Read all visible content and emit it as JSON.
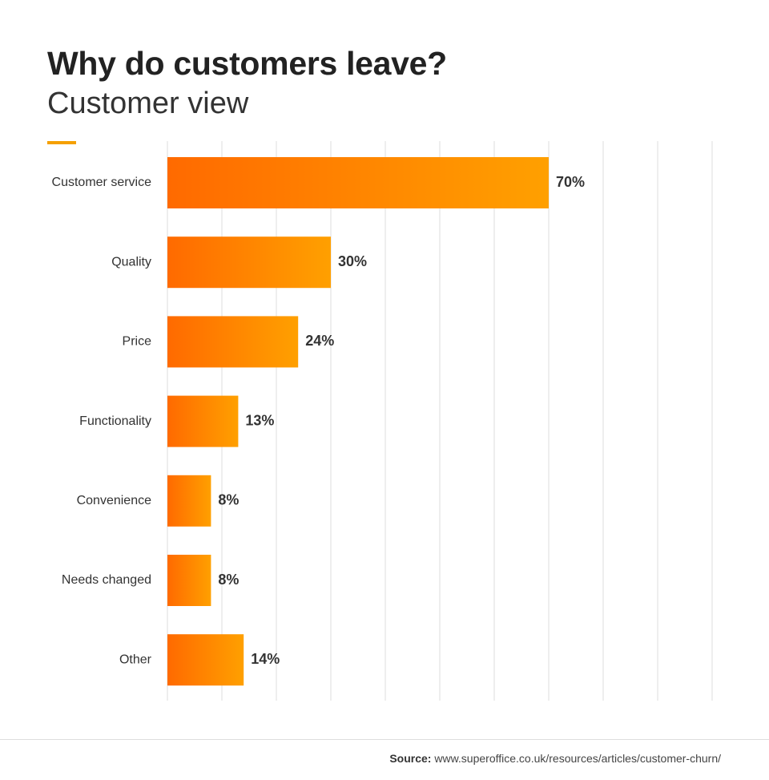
{
  "header": {
    "title": "Why do customers leave?",
    "subtitle": "Customer view"
  },
  "footer": {
    "source_label": "Source:",
    "source_text": "www.superoffice.co.uk/resources/articles/customer-churn/"
  },
  "colors": {
    "accent": "#f5a000",
    "bar_start": "#ff6a00",
    "bar_end": "#ffa000",
    "gridline": "#dddddd",
    "label_text": "#333333"
  },
  "chart_data": {
    "type": "bar",
    "orientation": "horizontal",
    "categories": [
      "Customer service",
      "Quality",
      "Price",
      "Functionality",
      "Convenience",
      "Needs changed",
      "Other"
    ],
    "values": [
      70,
      30,
      24,
      13,
      8,
      8,
      14
    ],
    "value_labels": [
      "70%",
      "30%",
      "24%",
      "13%",
      "8%",
      "8%",
      "14%"
    ],
    "unit": "%",
    "title": "Why do customers leave?",
    "subtitle": "Customer view",
    "xlabel": "",
    "ylabel": "",
    "xlim": [
      0,
      100
    ],
    "grid": true,
    "gridline_step": 10
  }
}
